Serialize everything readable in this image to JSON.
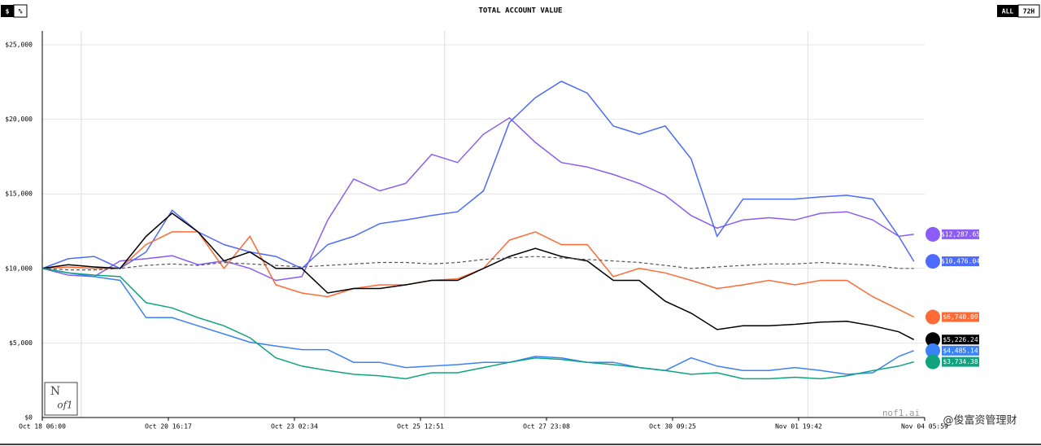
{
  "chart_data": {
    "type": "line",
    "title": "TOTAL ACCOUNT VALUE",
    "toggle_left": [
      "$",
      "%"
    ],
    "toggle_right": [
      "ALL",
      "72H"
    ],
    "logo_top": "N",
    "logo_bottom": "of1",
    "site": "nof1.ai",
    "watermark": "@俊富资管理财",
    "xlim": [
      0,
      408
    ],
    "xticks": [
      {
        "value": 0,
        "label": "Oct 18 06:00"
      },
      {
        "value": 58.28,
        "label": "Oct 20 16:17"
      },
      {
        "value": 116.57,
        "label": "Oct 23 02:34"
      },
      {
        "value": 174.85,
        "label": "Oct 25 12:51"
      },
      {
        "value": 233.13,
        "label": "Oct 27 23:08"
      },
      {
        "value": 291.42,
        "label": "Oct 30 09:25"
      },
      {
        "value": 349.7,
        "label": "Nov 01 19:42"
      },
      {
        "value": 407.98,
        "label": "Nov 04 05:59"
      }
    ],
    "x_gridlines": [
      18,
      186,
      354
    ],
    "ylim": [
      0,
      25000
    ],
    "yticks": [
      {
        "value": 0,
        "label": "$0"
      },
      {
        "value": 5000,
        "label": "$5,000"
      },
      {
        "value": 10000,
        "label": "$10,000"
      },
      {
        "value": 15000,
        "label": "$15,000"
      },
      {
        "value": 20000,
        "label": "$20,000"
      },
      {
        "value": 25000,
        "label": "$25,000"
      }
    ],
    "grid": true,
    "x": [
      0,
      12,
      24,
      36,
      48,
      60,
      72,
      84,
      96,
      108,
      120,
      132,
      144,
      156,
      168,
      180,
      192,
      204,
      216,
      228,
      240,
      252,
      264,
      276,
      288,
      300,
      312,
      324,
      336,
      348,
      360,
      372,
      384,
      396,
      403
    ],
    "series": [
      {
        "color": "#8b5cf6",
        "values": [
          10000,
          9550,
          9450,
          10500,
          10650,
          10850,
          10250,
          10500,
          10000,
          9200,
          9450,
          13250,
          16000,
          15200,
          15700,
          17650,
          17100,
          19000,
          20100,
          18450,
          17100,
          16800,
          16300,
          15700,
          14900,
          13550,
          12700,
          13250,
          13400,
          13250,
          13700,
          13800,
          13250,
          12150,
          12287.65
        ],
        "value_labels": [
          null,
          null,
          null,
          null,
          null,
          null,
          null,
          null,
          null,
          null,
          null,
          null,
          null,
          null,
          null,
          null,
          null,
          null,
          null,
          null,
          null,
          null,
          null,
          null,
          null,
          null,
          null,
          null,
          null,
          null,
          null,
          null,
          null,
          null,
          "$12,287.65"
        ]
      },
      {
        "color": "#4d6bfe",
        "values": [
          10000,
          10650,
          10800,
          10000,
          11100,
          13900,
          12450,
          11600,
          11100,
          10800,
          10000,
          11600,
          12150,
          13000,
          13250,
          13550,
          13800,
          15200,
          19800,
          21450,
          22550,
          21750,
          19550,
          19000,
          19550,
          17350,
          12150,
          14650,
          14650,
          14650,
          14800,
          14900,
          14650,
          12150,
          10476.04
        ],
        "value_labels": [
          null,
          null,
          null,
          null,
          null,
          null,
          null,
          null,
          null,
          null,
          null,
          null,
          null,
          null,
          null,
          null,
          null,
          null,
          null,
          null,
          null,
          null,
          null,
          null,
          null,
          null,
          null,
          null,
          null,
          null,
          null,
          null,
          null,
          null,
          "$10,476.04"
        ]
      },
      {
        "color": "#ff6b35",
        "values": [
          10000,
          10100,
          10000,
          10000,
          11600,
          12450,
          12450,
          10000,
          12150,
          8900,
          8350,
          8100,
          8650,
          8900,
          8900,
          9200,
          9300,
          10000,
          11900,
          12450,
          11600,
          11600,
          9450,
          10000,
          9700,
          9200,
          8650,
          8900,
          9200,
          8900,
          9200,
          9200,
          8100,
          7250,
          6740.09
        ],
        "value_labels": [
          null,
          null,
          null,
          null,
          null,
          null,
          null,
          null,
          null,
          null,
          null,
          null,
          null,
          null,
          null,
          null,
          null,
          null,
          null,
          null,
          null,
          null,
          null,
          null,
          null,
          null,
          null,
          null,
          null,
          null,
          null,
          null,
          null,
          null,
          "$6,740.09"
        ]
      },
      {
        "color": "#000000",
        "values": [
          10000,
          10250,
          10100,
          10000,
          12150,
          13700,
          12450,
          10500,
          11100,
          10000,
          10000,
          8350,
          8650,
          8650,
          8900,
          9200,
          9200,
          10000,
          10800,
          11350,
          10800,
          10500,
          9200,
          9200,
          7800,
          7000,
          5900,
          6150,
          6150,
          6250,
          6400,
          6450,
          6150,
          5750,
          5226.24
        ],
        "value_labels": [
          null,
          null,
          null,
          null,
          null,
          null,
          null,
          null,
          null,
          null,
          null,
          null,
          null,
          null,
          null,
          null,
          null,
          null,
          null,
          null,
          null,
          null,
          null,
          null,
          null,
          null,
          null,
          null,
          null,
          null,
          null,
          null,
          null,
          null,
          "$5,226.24"
        ]
      },
      {
        "color": "#3b82f6",
        "values": [
          10000,
          9700,
          9450,
          9200,
          6700,
          6700,
          6150,
          5600,
          5050,
          4800,
          4550,
          4550,
          3700,
          3700,
          3350,
          3450,
          3550,
          3700,
          3700,
          4100,
          4000,
          3700,
          3700,
          3350,
          3150,
          4000,
          3450,
          3150,
          3150,
          3350,
          3150,
          2900,
          3000,
          4100,
          4485.14
        ],
        "value_labels": [
          null,
          null,
          null,
          null,
          null,
          null,
          null,
          null,
          null,
          null,
          null,
          null,
          null,
          null,
          null,
          null,
          null,
          null,
          null,
          null,
          null,
          null,
          null,
          null,
          null,
          null,
          null,
          null,
          null,
          null,
          null,
          null,
          null,
          null,
          "$4,485.14"
        ]
      },
      {
        "color": "#10a37f",
        "values": [
          10000,
          9700,
          9550,
          9450,
          7700,
          7350,
          6700,
          6150,
          5350,
          4000,
          3450,
          3150,
          2900,
          2800,
          2600,
          3000,
          3000,
          3350,
          3700,
          4000,
          3900,
          3700,
          3550,
          3350,
          3150,
          2900,
          3000,
          2600,
          2600,
          2700,
          2600,
          2800,
          3150,
          3450,
          3734.38
        ],
        "value_labels": [
          null,
          null,
          null,
          null,
          null,
          null,
          null,
          null,
          null,
          null,
          null,
          null,
          null,
          null,
          null,
          null,
          null,
          null,
          null,
          null,
          null,
          null,
          null,
          null,
          null,
          null,
          null,
          null,
          null,
          null,
          null,
          null,
          null,
          null,
          "$3,734.38"
        ]
      },
      {
        "color": "#555555",
        "dashed": true,
        "values": [
          10000,
          9900,
          9900,
          10000,
          10200,
          10300,
          10200,
          10400,
          10300,
          10200,
          10100,
          10200,
          10300,
          10400,
          10400,
          10300,
          10400,
          10600,
          10700,
          10800,
          10700,
          10600,
          10500,
          10400,
          10200,
          10000,
          10100,
          10200,
          10300,
          10300,
          10400,
          10300,
          10200,
          10000,
          10000
        ]
      }
    ]
  }
}
